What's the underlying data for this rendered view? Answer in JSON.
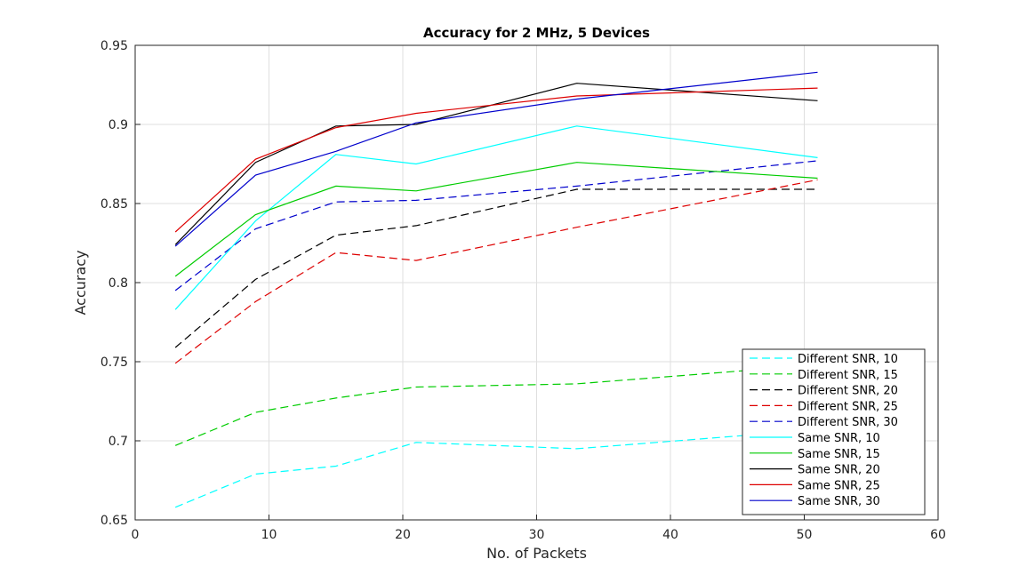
{
  "chart_data": {
    "type": "line",
    "title": "Accuracy for 2 MHz, 5 Devices",
    "xlabel": "No. of Packets",
    "ylabel": "Accuracy",
    "xlim": [
      0,
      60
    ],
    "ylim": [
      0.65,
      0.95
    ],
    "x_ticks": [
      "0",
      "10",
      "20",
      "30",
      "40",
      "50",
      "60"
    ],
    "y_ticks": [
      "0.65",
      "0.7",
      "0.75",
      "0.8",
      "0.85",
      "0.9",
      "0.95"
    ],
    "grid": true,
    "legend_position": "bottom-right",
    "x": [
      3,
      9,
      15,
      21,
      33,
      51
    ],
    "series": [
      {
        "name": "Different SNR, 10",
        "color": "#00ffff",
        "dash": "dashed",
        "values": [
          0.658,
          0.679,
          0.684,
          0.699,
          0.695,
          0.707
        ]
      },
      {
        "name": "Different SNR, 15",
        "color": "#00cc00",
        "dash": "dashed",
        "values": [
          0.697,
          0.718,
          0.727,
          0.734,
          0.736,
          0.748
        ]
      },
      {
        "name": "Different SNR, 20",
        "color": "#000000",
        "dash": "dashed",
        "values": [
          0.759,
          0.802,
          0.83,
          0.836,
          0.859,
          0.859
        ]
      },
      {
        "name": "Different SNR, 25",
        "color": "#dd0000",
        "dash": "dashed",
        "values": [
          0.749,
          0.788,
          0.819,
          0.814,
          0.835,
          0.865
        ]
      },
      {
        "name": "Different SNR, 30",
        "color": "#0000cc",
        "dash": "dashed",
        "values": [
          0.795,
          0.834,
          0.851,
          0.852,
          0.861,
          0.877
        ]
      },
      {
        "name": "Same SNR, 10",
        "color": "#00ffff",
        "dash": "solid",
        "values": [
          0.783,
          0.839,
          0.881,
          0.875,
          0.899,
          0.879
        ]
      },
      {
        "name": "Same SNR, 15",
        "color": "#00cc00",
        "dash": "solid",
        "values": [
          0.804,
          0.843,
          0.861,
          0.858,
          0.876,
          0.866
        ]
      },
      {
        "name": "Same SNR, 20",
        "color": "#000000",
        "dash": "solid",
        "values": [
          0.824,
          0.876,
          0.899,
          0.9,
          0.926,
          0.915
        ]
      },
      {
        "name": "Same SNR, 25",
        "color": "#dd0000",
        "dash": "solid",
        "values": [
          0.832,
          0.878,
          0.898,
          0.907,
          0.918,
          0.923
        ]
      },
      {
        "name": "Same SNR, 30",
        "color": "#0000cc",
        "dash": "solid",
        "values": [
          0.823,
          0.868,
          0.883,
          0.901,
          0.916,
          0.933
        ]
      }
    ]
  }
}
